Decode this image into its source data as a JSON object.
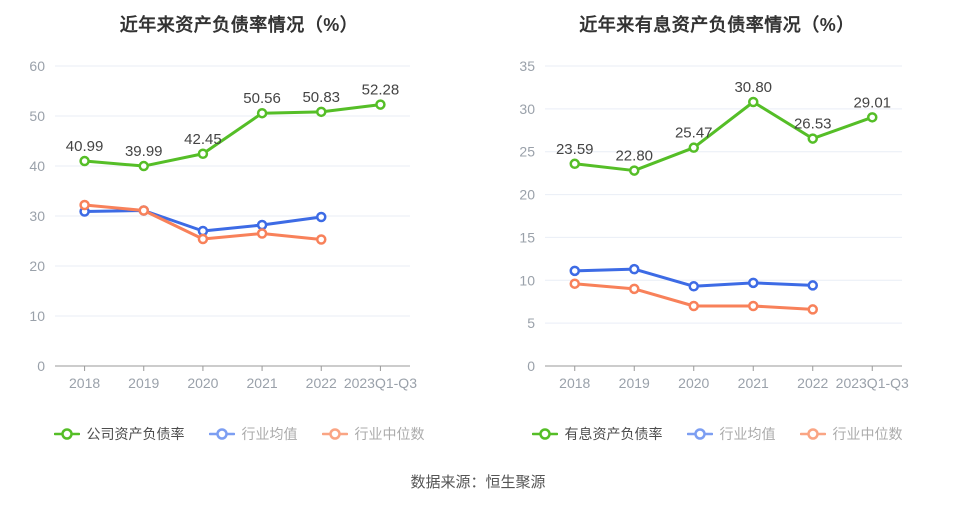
{
  "source_note": "数据来源：恒生聚源",
  "theme": {
    "background": "#ffffff",
    "grid_color": "#e9eef6",
    "axis_line_color": "#999999",
    "axis_text_color": "#9aa1aa",
    "value_label_color": "#444444",
    "title_color": "#333333",
    "source_text_color": "#555555"
  },
  "chart_data": [
    {
      "type": "line",
      "title": "近年来资产负债率情况（%）",
      "xlabel": "",
      "ylabel": "",
      "ylim": [
        0,
        60
      ],
      "y_step": 10,
      "grid": true,
      "legend_position": "bottom",
      "categories": [
        "2018",
        "2019",
        "2020",
        "2021",
        "2022",
        "2023Q1-Q3"
      ],
      "series": [
        {
          "name": "公司资产负债率",
          "color": "#55be27",
          "legend_marker_color": "#55be27",
          "legend_text_color": "#4d4d4d",
          "show_point_labels": true,
          "values": [
            40.99,
            39.99,
            42.45,
            50.56,
            50.83,
            52.28
          ]
        },
        {
          "name": "行业均值",
          "color": "#3d6be5",
          "legend_marker_color": "#7c9ef2",
          "legend_text_color": "#ababab",
          "show_point_labels": false,
          "values": [
            30.9,
            31.1,
            27.0,
            28.2,
            29.8
          ]
        },
        {
          "name": "行业中位数",
          "color": "#f8815a",
          "legend_marker_color": "#faa584",
          "legend_text_color": "#ababab",
          "show_point_labels": false,
          "values": [
            32.2,
            31.1,
            25.4,
            26.5,
            25.3
          ]
        }
      ]
    },
    {
      "type": "line",
      "title": "近年来有息资产负债率情况（%）",
      "xlabel": "",
      "ylabel": "",
      "ylim": [
        0,
        35
      ],
      "y_step": 5,
      "grid": true,
      "legend_position": "bottom",
      "categories": [
        "2018",
        "2019",
        "2020",
        "2021",
        "2022",
        "2023Q1-Q3"
      ],
      "series": [
        {
          "name": "有息资产负债率",
          "color": "#55be27",
          "legend_marker_color": "#55be27",
          "legend_text_color": "#4d4d4d",
          "show_point_labels": true,
          "values": [
            23.59,
            22.8,
            25.47,
            30.8,
            26.53,
            29.01
          ]
        },
        {
          "name": "行业均值",
          "color": "#3d6be5",
          "legend_marker_color": "#7c9ef2",
          "legend_text_color": "#ababab",
          "show_point_labels": false,
          "values": [
            11.1,
            11.3,
            9.3,
            9.7,
            9.4
          ]
        },
        {
          "name": "行业中位数",
          "color": "#f8815a",
          "legend_marker_color": "#faa584",
          "legend_text_color": "#ababab",
          "show_point_labels": false,
          "values": [
            9.6,
            9.0,
            7.0,
            7.0,
            6.6
          ]
        }
      ]
    }
  ]
}
